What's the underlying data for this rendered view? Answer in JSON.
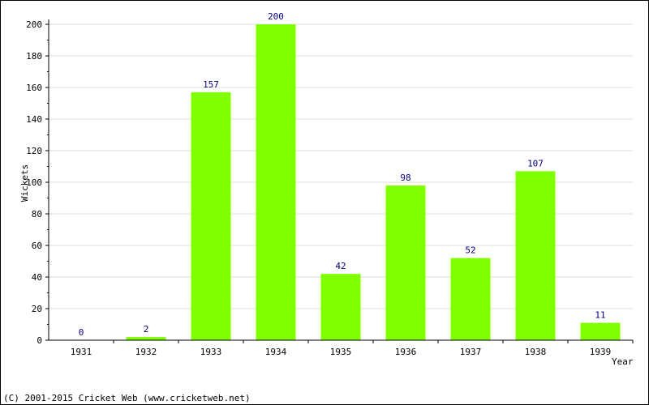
{
  "chart_data": {
    "type": "bar",
    "categories": [
      "1931",
      "1932",
      "1933",
      "1934",
      "1935",
      "1936",
      "1937",
      "1938",
      "1939"
    ],
    "values": [
      0,
      2,
      157,
      200,
      42,
      98,
      52,
      107,
      11
    ],
    "xlabel": "Year",
    "ylabel": "Wickets",
    "ylim": [
      0,
      200
    ],
    "yticks": [
      0,
      20,
      40,
      60,
      80,
      100,
      120,
      140,
      160,
      180,
      200
    ],
    "grid": true,
    "legend": "none",
    "colors": {
      "bar": "#80ff00",
      "data_label": "#000080",
      "grid": "#dddddd",
      "axis": "#000000"
    }
  },
  "footer": {
    "copyright": "(C) 2001-2015 Cricket Web (www.cricketweb.net)"
  }
}
